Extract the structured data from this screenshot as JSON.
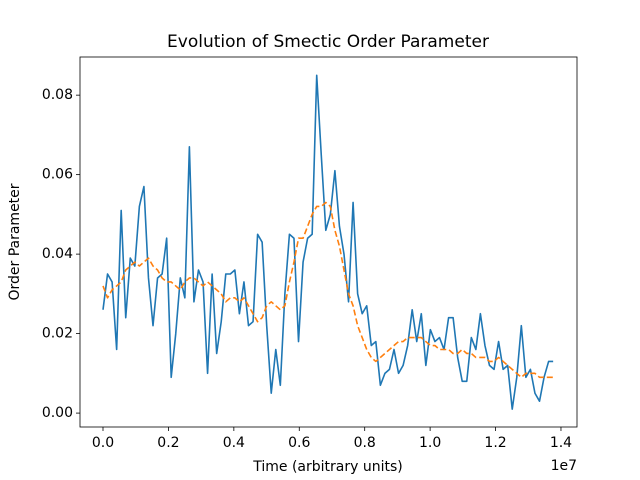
{
  "chart_data": {
    "type": "line",
    "title": "Evolution of Smectic Order Parameter",
    "xlabel": "Time (arbitrary units)",
    "ylabel": "Order Parameter",
    "x_offset_label": "1e7",
    "x": [
      0,
      139000,
      278000,
      417000,
      556000,
      695000,
      834000,
      973000,
      1112000,
      1251000,
      1390000,
      1529000,
      1668000,
      1807000,
      1946000,
      2085000,
      2224000,
      2363000,
      2502000,
      2641000,
      2780000,
      2919000,
      3058000,
      3197000,
      3336000,
      3475000,
      3614000,
      3753000,
      3892000,
      4031000,
      4170000,
      4309000,
      4448000,
      4587000,
      4726000,
      4865000,
      5004000,
      5143000,
      5282000,
      5421000,
      5560000,
      5699000,
      5838000,
      5977000,
      6116000,
      6255000,
      6394000,
      6533000,
      6672000,
      6811000,
      6950000,
      7089000,
      7228000,
      7367000,
      7506000,
      7645000,
      7784000,
      7923000,
      8062000,
      8201000,
      8340000,
      8479000,
      8618000,
      8757000,
      8896000,
      9035000,
      9174000,
      9313000,
      9452000,
      9591000,
      9730000,
      9869000,
      10008000,
      10147000,
      10286000,
      10425000,
      10564000,
      10703000,
      10842000,
      10981000,
      11120000,
      11259000,
      11398000,
      11537000,
      11676000,
      11815000,
      11954000,
      12093000,
      12232000,
      12371000,
      12510000,
      12649000,
      12788000,
      12927000,
      13066000,
      13205000,
      13344000,
      13483000,
      13622000,
      13761000
    ],
    "series": [
      {
        "color": "#1f77b4",
        "dashed": false,
        "values": [
          0.026,
          0.035,
          0.033,
          0.016,
          0.051,
          0.024,
          0.039,
          0.037,
          0.052,
          0.057,
          0.034,
          0.022,
          0.034,
          0.035,
          0.044,
          0.009,
          0.02,
          0.034,
          0.029,
          0.067,
          0.028,
          0.036,
          0.033,
          0.01,
          0.035,
          0.015,
          0.023,
          0.035,
          0.035,
          0.036,
          0.025,
          0.033,
          0.022,
          0.023,
          0.045,
          0.043,
          0.022,
          0.005,
          0.016,
          0.007,
          0.03,
          0.045,
          0.044,
          0.018,
          0.038,
          0.044,
          0.045,
          0.085,
          0.065,
          0.046,
          0.05,
          0.061,
          0.047,
          0.04,
          0.028,
          0.053,
          0.03,
          0.025,
          0.027,
          0.017,
          0.018,
          0.007,
          0.01,
          0.011,
          0.016,
          0.01,
          0.012,
          0.017,
          0.026,
          0.018,
          0.025,
          0.012,
          0.021,
          0.018,
          0.019,
          0.016,
          0.024,
          0.024,
          0.014,
          0.008,
          0.008,
          0.019,
          0.016,
          0.025,
          0.017,
          0.012,
          0.011,
          0.018,
          0.011,
          0.012,
          0.001,
          0.009,
          0.022,
          0.009,
          0.011,
          0.005,
          0.003,
          0.009,
          0.013,
          0.013
        ]
      },
      {
        "color": "#ff7f0e",
        "dashed": true,
        "values": [
          0.032,
          0.029,
          0.031,
          0.032,
          0.033,
          0.036,
          0.037,
          0.038,
          0.037,
          0.038,
          0.039,
          0.037,
          0.036,
          0.034,
          0.033,
          0.033,
          0.032,
          0.031,
          0.033,
          0.034,
          0.034,
          0.033,
          0.032,
          0.033,
          0.032,
          0.031,
          0.03,
          0.028,
          0.029,
          0.029,
          0.028,
          0.029,
          0.027,
          0.025,
          0.023,
          0.024,
          0.027,
          0.028,
          0.027,
          0.026,
          0.027,
          0.033,
          0.038,
          0.044,
          0.044,
          0.047,
          0.05,
          0.052,
          0.052,
          0.053,
          0.052,
          0.046,
          0.042,
          0.036,
          0.03,
          0.027,
          0.022,
          0.019,
          0.016,
          0.014,
          0.013,
          0.014,
          0.015,
          0.016,
          0.017,
          0.018,
          0.018,
          0.019,
          0.019,
          0.019,
          0.019,
          0.018,
          0.017,
          0.017,
          0.016,
          0.016,
          0.016,
          0.015,
          0.015,
          0.016,
          0.015,
          0.015,
          0.014,
          0.014,
          0.014,
          0.013,
          0.013,
          0.014,
          0.013,
          0.012,
          0.011,
          0.01,
          0.009,
          0.01,
          0.01,
          0.01,
          0.009,
          0.009,
          0.009,
          0.009
        ]
      }
    ],
    "xlim": [
      -703000,
      14490000
    ],
    "ylim": [
      -0.0035,
      0.0896
    ],
    "xticks": [
      {
        "value": 0,
        "label": "0.0"
      },
      {
        "value": 2000000,
        "label": "0.2"
      },
      {
        "value": 4000000,
        "label": "0.4"
      },
      {
        "value": 6000000,
        "label": "0.6"
      },
      {
        "value": 8000000,
        "label": "0.8"
      },
      {
        "value": 10000000,
        "label": "1.0"
      },
      {
        "value": 12000000,
        "label": "1.2"
      },
      {
        "value": 14000000,
        "label": "1.4"
      }
    ],
    "yticks": [
      {
        "value": 0,
        "label": "0.00"
      },
      0.02,
      0.04,
      0.06,
      0.08
    ],
    "grid": false
  }
}
